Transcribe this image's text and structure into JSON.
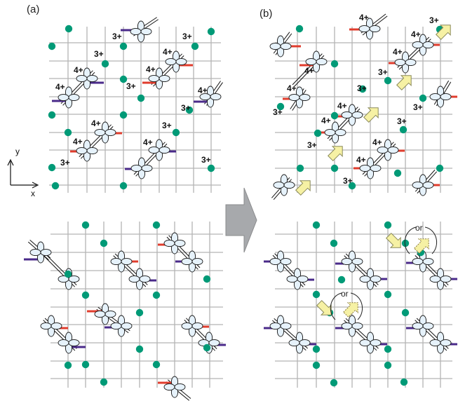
{
  "labels": {
    "panel_a": "(a)",
    "panel_b": "(b)",
    "valence_3": "3+",
    "valence_4": "4+",
    "axis_x": "x",
    "axis_y": "y",
    "alternative": "or"
  },
  "colors": {
    "grid": "#b4b4b4",
    "ion_3plus": "#009a77",
    "bond_red": "#e03c2d",
    "bond_purple": "#4a2a8a",
    "orbital_fill": "#e6f2fb",
    "orbital_stroke": "#1a1a1a",
    "arrow_fill": "#f6f1a4",
    "arrow_stroke": "#8a8a5a",
    "transition_arrow": "#a7a9ac"
  },
  "icons": {
    "ion_3plus": "filled-teal-circle",
    "ion_4plus": "four-lobed-orbital",
    "move_arrow": "yellow-block-arrow",
    "transition": "gray-block-arrow-right"
  }
}
